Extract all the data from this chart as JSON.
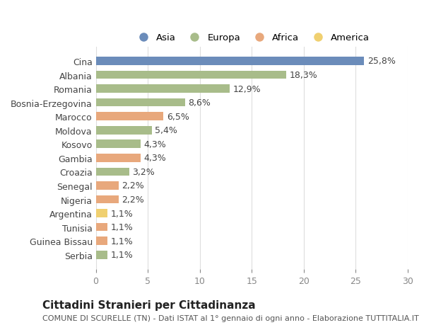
{
  "countries": [
    "Cina",
    "Albania",
    "Romania",
    "Bosnia-Erzegovina",
    "Marocco",
    "Moldova",
    "Kosovo",
    "Gambia",
    "Croazia",
    "Senegal",
    "Nigeria",
    "Argentina",
    "Tunisia",
    "Guinea Bissau",
    "Serbia"
  ],
  "values": [
    25.8,
    18.3,
    12.9,
    8.6,
    6.5,
    5.4,
    4.3,
    4.3,
    3.2,
    2.2,
    2.2,
    1.1,
    1.1,
    1.1,
    1.1
  ],
  "labels": [
    "25,8%",
    "18,3%",
    "12,9%",
    "8,6%",
    "6,5%",
    "5,4%",
    "4,3%",
    "4,3%",
    "3,2%",
    "2,2%",
    "2,2%",
    "1,1%",
    "1,1%",
    "1,1%",
    "1,1%"
  ],
  "continents": [
    "Asia",
    "Europa",
    "Europa",
    "Europa",
    "Africa",
    "Europa",
    "Europa",
    "Africa",
    "Europa",
    "Africa",
    "Africa",
    "America",
    "Africa",
    "Africa",
    "Europa"
  ],
  "colors": {
    "Asia": "#6b8cba",
    "Europa": "#a8bc8a",
    "Africa": "#e8a87c",
    "America": "#f0d070"
  },
  "legend_order": [
    "Asia",
    "Europa",
    "Africa",
    "America"
  ],
  "title": "Cittadini Stranieri per Cittadinanza",
  "subtitle": "COMUNE DI SCURELLE (TN) - Dati ISTAT al 1° gennaio di ogni anno - Elaborazione TUTTITALIA.IT",
  "xlim": [
    0,
    30
  ],
  "xticks": [
    0,
    5,
    10,
    15,
    20,
    25,
    30
  ],
  "bg_color": "#ffffff",
  "grid_color": "#dddddd",
  "bar_height": 0.6,
  "label_fontsize": 9,
  "tick_fontsize": 9,
  "title_fontsize": 11,
  "subtitle_fontsize": 8
}
